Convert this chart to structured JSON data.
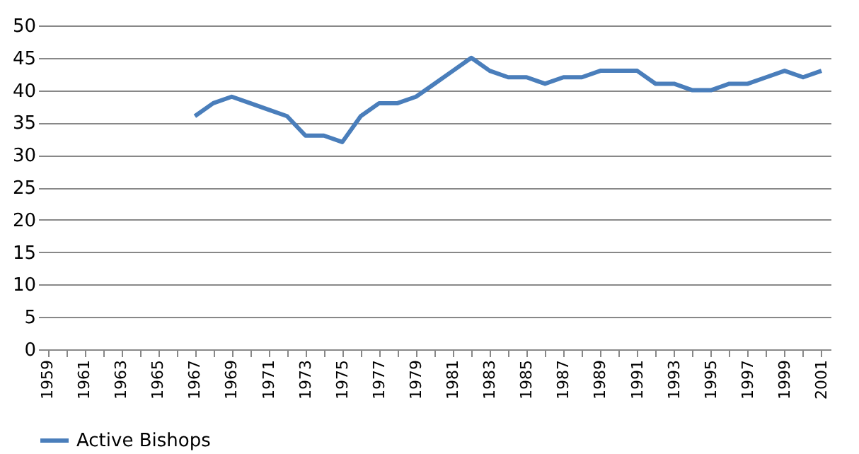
{
  "chart_data": {
    "type": "line",
    "categories": [
      "1959",
      null,
      "1961",
      null,
      "1963",
      null,
      "1965",
      null,
      "1967",
      null,
      "1969",
      null,
      "1971",
      null,
      "1973",
      null,
      "1975",
      null,
      "1977",
      null,
      "1979",
      null,
      "1981",
      null,
      "1983",
      null,
      "1985",
      null,
      "1987",
      null,
      "1989",
      null,
      "1991",
      null,
      "1993",
      null,
      "1995",
      null,
      "1997",
      null,
      "1999",
      null,
      "2001"
    ],
    "series": [
      {
        "name": "Active Bishops",
        "color": "#4a7ebb",
        "values": [
          null,
          null,
          null,
          null,
          null,
          null,
          null,
          null,
          36,
          38,
          39,
          38,
          37,
          36,
          33,
          33,
          32,
          36,
          38,
          38,
          39,
          41,
          43,
          45,
          43,
          42,
          42,
          41,
          42,
          42,
          43,
          43,
          43,
          41,
          41,
          40,
          40,
          41,
          41,
          42,
          43,
          42,
          43
        ]
      }
    ],
    "ylim": [
      0,
      50
    ],
    "yticks": [
      0,
      5,
      10,
      15,
      20,
      25,
      30,
      35,
      40,
      45,
      50
    ],
    "grid": "y",
    "legend": "bottom",
    "marker": "none",
    "line_style": "solid"
  }
}
